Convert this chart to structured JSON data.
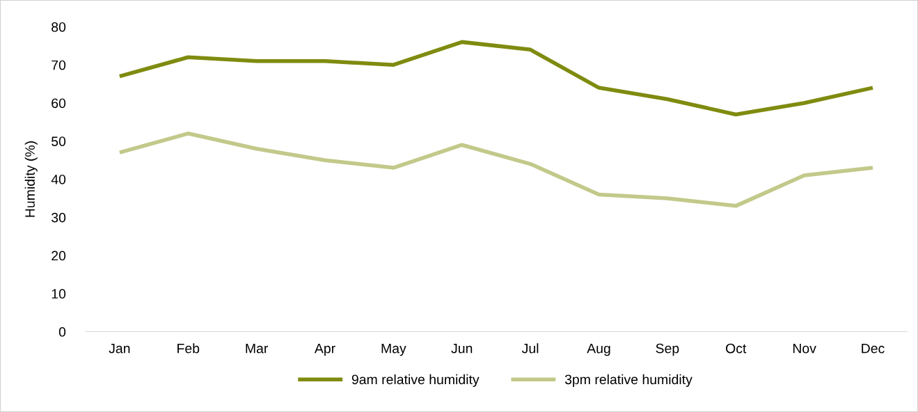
{
  "chart_data": {
    "type": "line",
    "ylabel": "Humidity (%)",
    "categories": [
      "Jan",
      "Feb",
      "Mar",
      "Apr",
      "May",
      "Jun",
      "Jul",
      "Aug",
      "Sep",
      "Oct",
      "Nov",
      "Dec"
    ],
    "series": [
      {
        "name": "9am relative humidity",
        "color": "#7f8b0f",
        "values": [
          67,
          72,
          71,
          71,
          70,
          76,
          74,
          64,
          61,
          57,
          60,
          64
        ]
      },
      {
        "name": "3pm relative humidity",
        "color": "#c2c98a",
        "values": [
          47,
          52,
          48,
          45,
          43,
          49,
          44,
          36,
          35,
          33,
          41,
          43
        ]
      }
    ],
    "ylim": [
      0,
      80
    ],
    "yticks": [
      0,
      10,
      20,
      30,
      40,
      50,
      60,
      70,
      80
    ],
    "grid": false,
    "legend": "bottom",
    "marker": "none",
    "line_style": "solid"
  }
}
